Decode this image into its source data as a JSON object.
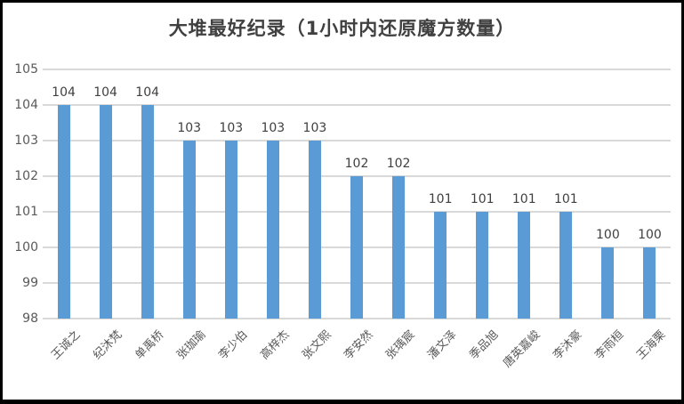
{
  "chart_data": {
    "type": "bar",
    "title": "大堆最好纪录（1小时内还原魔方数量）",
    "categories": [
      "王诚之",
      "纪沐梵",
      "单禹桥",
      "张珈瑜",
      "李少伯",
      "高梓杰",
      "张文熙",
      "李安然",
      "张瑀宸",
      "潘文泽",
      "季品旭",
      "唐英嘉峻",
      "李沐豪",
      "李雨桓",
      "王海栗"
    ],
    "values": [
      104,
      104,
      104,
      103,
      103,
      103,
      103,
      102,
      102,
      101,
      101,
      101,
      101,
      100,
      100
    ],
    "xlabel": "",
    "ylabel": "",
    "ylim": [
      98,
      105
    ],
    "yticks": [
      98,
      99,
      100,
      101,
      102,
      103,
      104,
      105
    ],
    "grid": true,
    "data_labels": true,
    "legend": "none",
    "colors": {
      "bar": "#5b9bd5",
      "gridline": "#d9d9d9",
      "tick_text": "#595959",
      "title_text": "#404040",
      "data_label_text": "#404040",
      "frame_border": "#000000",
      "background": "#ffffff"
    }
  }
}
